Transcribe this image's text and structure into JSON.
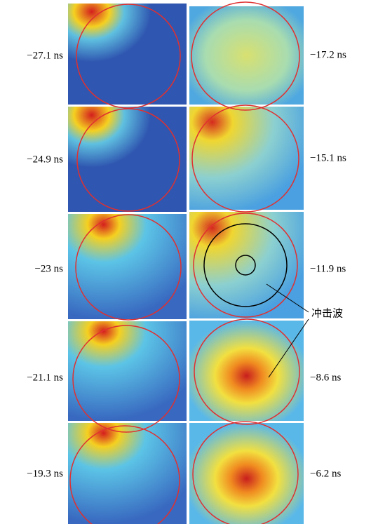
{
  "left_labels": [
    "−27.1 ns",
    "−24.9 ns",
    "−23 ns",
    "−21.1 ns",
    "−19.3 ns"
  ],
  "right_labels": [
    "−17.2 ns",
    "−15.1 ns",
    "−11.9 ns",
    "−8.6 ns",
    "−6.2 ns"
  ],
  "annotation": "冲击波"
}
